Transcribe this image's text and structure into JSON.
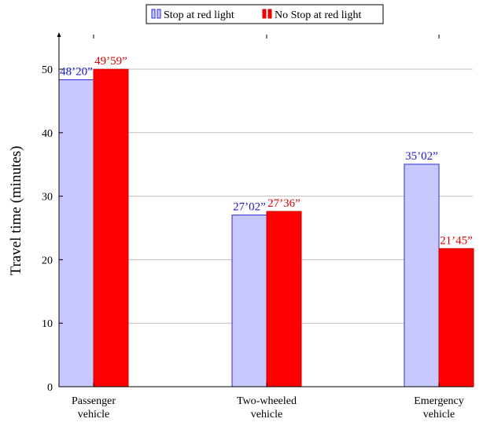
{
  "chart_data": {
    "type": "bar",
    "title": "",
    "xlabel": "",
    "ylabel": "Travel time (minutes)",
    "ylim": [
      0,
      55
    ],
    "yticks": [
      0,
      10,
      20,
      30,
      40,
      50
    ],
    "grid": true,
    "legend_position": "top-center",
    "categories": [
      [
        "Passenger",
        "vehicle"
      ],
      [
        "Two-wheeled",
        "vehicle"
      ],
      [
        "Emergency",
        "vehicle"
      ]
    ],
    "series": [
      {
        "name": "Stop at red light",
        "values": [
          48.33,
          27.03,
          35.03
        ],
        "labels": [
          "48’20”",
          "27’02”",
          "35’02”"
        ],
        "fill": "#c8c8ff",
        "stroke": "#2b2bd8",
        "label_color": "#1a1acc"
      },
      {
        "name": "No Stop at red light",
        "values": [
          49.98,
          27.6,
          21.75
        ],
        "labels": [
          "49’59”",
          "27’36”",
          "21’45”"
        ],
        "fill": "#ff0000",
        "stroke": "#cc0000",
        "label_color": "#e00000"
      }
    ]
  }
}
